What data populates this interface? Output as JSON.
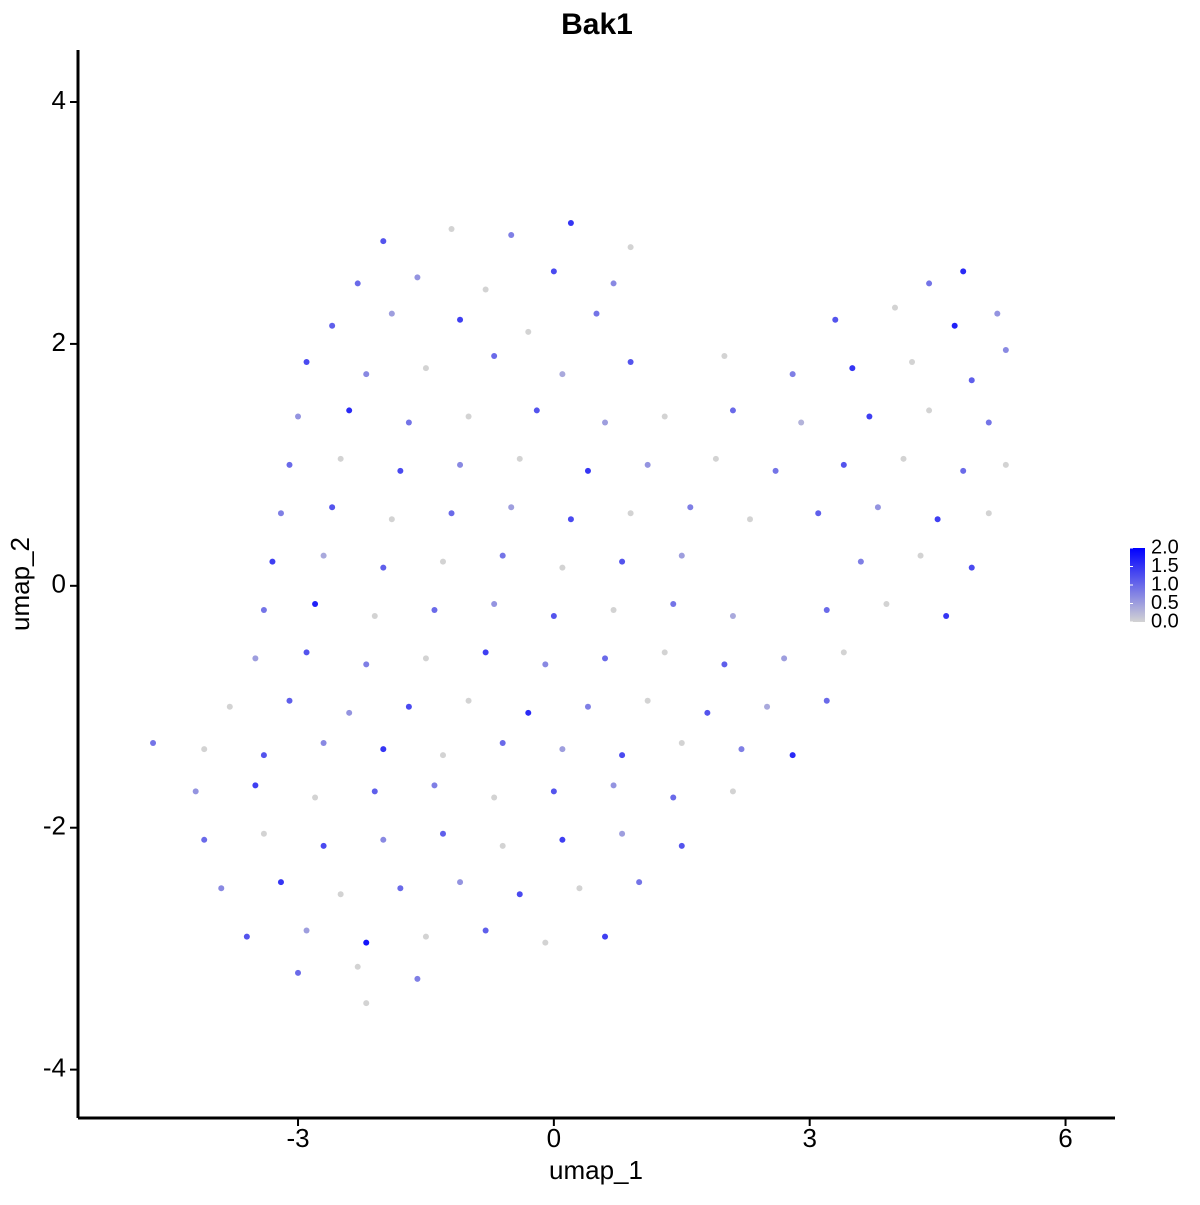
{
  "chart_data": {
    "type": "scatter",
    "title": "Bak1",
    "x_label": "umap_1",
    "y_label": "umap_2",
    "xlim": [
      -5.58,
      6.58
    ],
    "ylim": [
      -4.4,
      4.43
    ],
    "xticks": [
      -3,
      0,
      3,
      6
    ],
    "yticks": [
      -4,
      -2,
      0,
      2,
      4
    ],
    "grid": false,
    "low_color": "#d3d3d3",
    "high_color": "#0000ff",
    "legend_position": "right",
    "colorbar_ticks": [
      {
        "value": 0,
        "label": "0.0"
      },
      {
        "value": 0.5,
        "label": "0.5"
      },
      {
        "value": 1,
        "label": "1.0"
      },
      {
        "value": 1.5,
        "label": "1.5"
      },
      {
        "value": 2,
        "label": "2.0"
      }
    ],
    "x": [
      -2.0,
      -1.2,
      -0.5,
      0.2,
      0.9,
      -2.3,
      -1.6,
      -0.8,
      0,
      0.7,
      4.4,
      4.8,
      -2.6,
      -1.9,
      -1.1,
      -0.3,
      0.5,
      3.3,
      4.0,
      4.7,
      5.2,
      -2.9,
      -2.2,
      -1.5,
      -0.7,
      0.1,
      0.9,
      2.0,
      2.8,
      3.5,
      4.2,
      4.9,
      5.3,
      -3.0,
      -2.4,
      -1.7,
      -1.0,
      -0.2,
      0.6,
      1.3,
      2.1,
      2.9,
      3.7,
      4.4,
      5.1,
      -3.1,
      -2.5,
      -1.8,
      -1.1,
      -0.4,
      0.4,
      1.1,
      1.9,
      2.6,
      3.4,
      4.1,
      4.8,
      5.3,
      -3.2,
      -2.6,
      -1.9,
      -1.2,
      -0.5,
      0.2,
      0.9,
      1.6,
      2.3,
      3.1,
      3.8,
      4.5,
      5.1,
      -3.3,
      -2.7,
      -2.0,
      -1.3,
      -0.6,
      0.1,
      0.8,
      1.5,
      3.6,
      4.3,
      4.9,
      -3.4,
      -2.8,
      -2.1,
      -1.4,
      -0.7,
      0,
      0.7,
      1.4,
      2.1,
      3.2,
      3.9,
      4.6,
      -3.5,
      -2.9,
      -2.2,
      -1.5,
      -0.8,
      -0.1,
      0.6,
      1.3,
      2.0,
      2.7,
      3.4,
      -3.8,
      -3.1,
      -2.4,
      -1.7,
      -1.0,
      -0.3,
      0.4,
      1.1,
      1.8,
      2.5,
      3.2,
      -4.7,
      -4.1,
      -3.4,
      -2.7,
      -2.0,
      -1.3,
      -0.6,
      0.1,
      0.8,
      1.5,
      2.2,
      2.8,
      -4.2,
      -3.5,
      -2.8,
      -2.1,
      -1.4,
      -0.7,
      0,
      0.7,
      1.4,
      2.1,
      -4.1,
      -3.4,
      -2.7,
      -2.0,
      -1.3,
      -0.6,
      0.1,
      0.8,
      1.5,
      -3.9,
      -3.2,
      -2.5,
      -1.8,
      -1.1,
      -0.4,
      0.3,
      1.0,
      -3.6,
      -2.9,
      -2.2,
      -1.5,
      -0.8,
      -0.1,
      0.6,
      -3.0,
      -2.3,
      -1.6,
      -2.2
    ],
    "y": [
      2.85,
      2.95,
      2.9,
      3.0,
      2.8,
      2.5,
      2.55,
      2.45,
      2.6,
      2.5,
      2.5,
      2.6,
      2.15,
      2.25,
      2.2,
      2.1,
      2.25,
      2.2,
      2.3,
      2.15,
      2.25,
      1.85,
      1.75,
      1.8,
      1.9,
      1.75,
      1.85,
      1.9,
      1.75,
      1.8,
      1.85,
      1.7,
      1.95,
      1.4,
      1.45,
      1.35,
      1.4,
      1.45,
      1.35,
      1.4,
      1.45,
      1.35,
      1.4,
      1.45,
      1.35,
      1.0,
      1.05,
      0.95,
      1.0,
      1.05,
      0.95,
      1.0,
      1.05,
      0.95,
      1.0,
      1.05,
      0.95,
      1.0,
      0.6,
      0.65,
      0.55,
      0.6,
      0.65,
      0.55,
      0.6,
      0.65,
      0.55,
      0.6,
      0.65,
      0.55,
      0.6,
      0.2,
      0.25,
      0.15,
      0.2,
      0.25,
      0.15,
      0.2,
      0.25,
      0.2,
      0.25,
      0.15,
      -0.2,
      -0.15,
      -0.25,
      -0.2,
      -0.15,
      -0.25,
      -0.2,
      -0.15,
      -0.25,
      -0.2,
      -0.15,
      -0.25,
      -0.6,
      -0.55,
      -0.65,
      -0.6,
      -0.55,
      -0.65,
      -0.6,
      -0.55,
      -0.65,
      -0.6,
      -0.55,
      -1.0,
      -0.95,
      -1.05,
      -1.0,
      -0.95,
      -1.05,
      -1.0,
      -0.95,
      -1.05,
      -1.0,
      -0.95,
      -1.3,
      -1.35,
      -1.4,
      -1.3,
      -1.35,
      -1.4,
      -1.3,
      -1.35,
      -1.4,
      -1.3,
      -1.35,
      -1.4,
      -1.7,
      -1.65,
      -1.75,
      -1.7,
      -1.65,
      -1.75,
      -1.7,
      -1.65,
      -1.75,
      -1.7,
      -2.1,
      -2.05,
      -2.15,
      -2.1,
      -2.05,
      -2.15,
      -2.1,
      -2.05,
      -2.15,
      -2.5,
      -2.45,
      -2.55,
      -2.5,
      -2.45,
      -2.55,
      -2.5,
      -2.45,
      -2.9,
      -2.85,
      -2.95,
      -2.9,
      -2.85,
      -2.95,
      -2.9,
      -3.2,
      -3.15,
      -3.25,
      -3.45
    ],
    "values": [
      1.2,
      0,
      0.8,
      1.5,
      0,
      1.0,
      0.6,
      0,
      1.3,
      0.7,
      0.9,
      1.6,
      1.1,
      0.5,
      1.4,
      0,
      0.9,
      1.2,
      0,
      1.7,
      0.6,
      1.3,
      0.7,
      0,
      1.0,
      0.4,
      1.2,
      0,
      0.8,
      1.5,
      0,
      1.1,
      0.7,
      0.6,
      1.6,
      0.9,
      0,
      1.2,
      0.5,
      0,
      1.0,
      0.3,
      1.4,
      0,
      0.9,
      1.0,
      0,
      1.3,
      0.7,
      0,
      1.5,
      0.6,
      0,
      0.9,
      1.2,
      0,
      1.0,
      0,
      0.8,
      1.2,
      0,
      1.0,
      0.5,
      1.3,
      0,
      0.8,
      0,
      1.1,
      0.6,
      1.4,
      0,
      1.4,
      0.4,
      1.1,
      0,
      0.9,
      0,
      1.2,
      0.5,
      0.8,
      0,
      1.3,
      0.9,
      1.7,
      0,
      1.0,
      0.6,
      1.2,
      0,
      0.9,
      0.4,
      1.0,
      0,
      1.5,
      0.5,
      1.2,
      0.8,
      0,
      1.4,
      0.7,
      1.0,
      0,
      1.1,
      0.5,
      0,
      0,
      1.1,
      0.6,
      1.3,
      0,
      1.6,
      0.8,
      0,
      1.2,
      0.4,
      1.0,
      0.9,
      0,
      1.2,
      0.7,
      1.5,
      0,
      1.0,
      0.5,
      1.3,
      0,
      0.8,
      1.6,
      0.6,
      1.4,
      0,
      1.1,
      0.8,
      0,
      1.2,
      0.6,
      1.0,
      0,
      1.0,
      0,
      1.3,
      0.7,
      1.1,
      0,
      1.4,
      0.5,
      1.2,
      0.7,
      1.5,
      0,
      1.0,
      0.6,
      1.3,
      0,
      0.9,
      1.2,
      0.5,
      1.8,
      0,
      1.1,
      0,
      1.4,
      1.0,
      0,
      0.8,
      0
    ]
  }
}
